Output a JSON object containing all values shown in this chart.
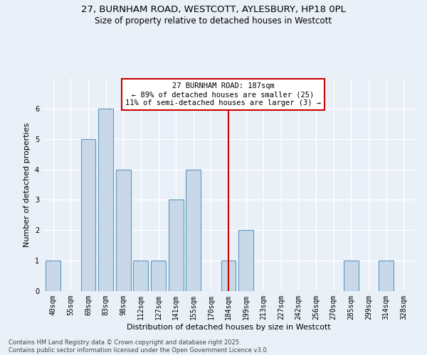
{
  "title_line1": "27, BURNHAM ROAD, WESTCOTT, AYLESBURY, HP18 0PL",
  "title_line2": "Size of property relative to detached houses in Westcott",
  "xlabel": "Distribution of detached houses by size in Westcott",
  "ylabel": "Number of detached properties",
  "categories": [
    "40sqm",
    "55sqm",
    "69sqm",
    "83sqm",
    "98sqm",
    "112sqm",
    "127sqm",
    "141sqm",
    "155sqm",
    "170sqm",
    "184sqm",
    "199sqm",
    "213sqm",
    "227sqm",
    "242sqm",
    "256sqm",
    "270sqm",
    "285sqm",
    "299sqm",
    "314sqm",
    "328sqm"
  ],
  "values": [
    1,
    0,
    5,
    6,
    4,
    1,
    1,
    3,
    4,
    0,
    1,
    2,
    0,
    0,
    0,
    0,
    0,
    1,
    0,
    1,
    0
  ],
  "bar_color": "#c8d8e8",
  "bar_edge_color": "#5a9abf",
  "bar_edge_width": 0.8,
  "vline_x_index": 10,
  "vline_color": "#cc0000",
  "annotation_text": "27 BURNHAM ROAD: 187sqm\n← 89% of detached houses are smaller (25)\n11% of semi-detached houses are larger (3) →",
  "annotation_box_color": "#ffffff",
  "annotation_box_edge": "#cc0000",
  "annotation_fontsize": 7.5,
  "ylim": [
    0,
    7
  ],
  "yticks": [
    0,
    1,
    2,
    3,
    4,
    5,
    6
  ],
  "background_color": "#eaf0f8",
  "grid_color": "#ffffff",
  "title_fontsize": 9.5,
  "subtitle_fontsize": 8.5,
  "axis_label_fontsize": 8,
  "tick_fontsize": 7,
  "footnote": "Contains HM Land Registry data © Crown copyright and database right 2025.\nContains public sector information licensed under the Open Government Licence v3.0."
}
